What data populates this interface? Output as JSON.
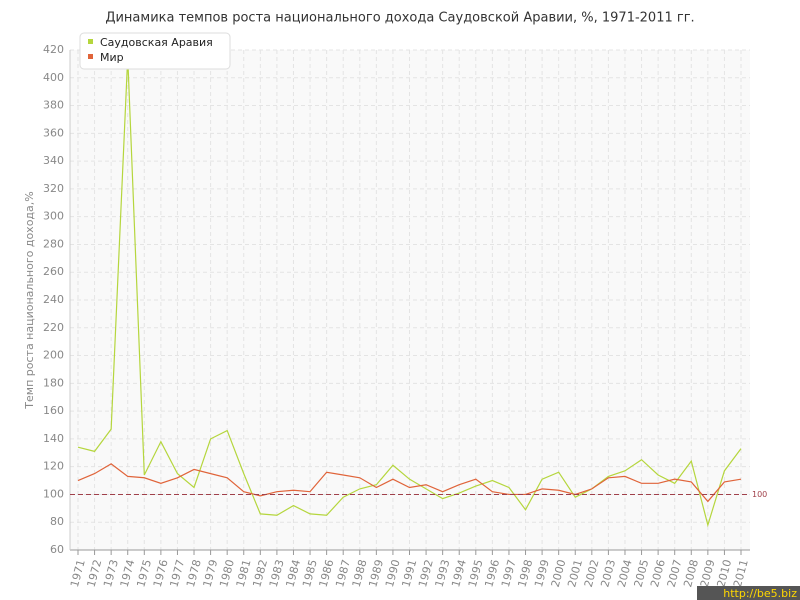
{
  "chart_data": {
    "type": "line",
    "title": "Динамика темпов роста национального дохода Саудовской Аравии, %, 1971-2011 гг.",
    "y_label": "Темп роста национального дохода,%",
    "categories": [
      "1971",
      "1972",
      "1973",
      "1974",
      "1975",
      "1976",
      "1977",
      "1978",
      "1979",
      "1980",
      "1981",
      "1982",
      "1983",
      "1984",
      "1985",
      "1986",
      "1987",
      "1988",
      "1989",
      "1990",
      "1991",
      "1992",
      "1993",
      "1994",
      "1995",
      "1996",
      "1997",
      "1998",
      "1999",
      "2000",
      "2001",
      "2002",
      "2003",
      "2004",
      "2005",
      "2006",
      "2007",
      "2008",
      "2009",
      "2010",
      "2011"
    ],
    "series": [
      {
        "name": "Саудовская Аравия",
        "color": "#b5d63d",
        "values": [
          134,
          131,
          147,
          415,
          114,
          138,
          115,
          105,
          140,
          146,
          115,
          86,
          85,
          92,
          86,
          85,
          98,
          104,
          107,
          121,
          111,
          104,
          97,
          101,
          106,
          110,
          105,
          89,
          111,
          116,
          98,
          104,
          113,
          117,
          125,
          114,
          108,
          124,
          78,
          117,
          133
        ]
      },
      {
        "name": "Мир",
        "color": "#e0643a",
        "values": [
          110,
          115,
          122,
          113,
          112,
          108,
          112,
          118,
          115,
          112,
          102,
          99,
          102,
          103,
          102,
          116,
          114,
          112,
          105,
          111,
          105,
          107,
          102,
          107,
          111,
          102,
          100,
          100,
          104,
          103,
          100,
          104,
          112,
          113,
          108,
          108,
          111,
          109,
          95,
          109,
          111
        ]
      }
    ],
    "ylim": [
      60,
      420
    ],
    "yticks": [
      60,
      80,
      100,
      120,
      140,
      160,
      180,
      200,
      220,
      240,
      260,
      280,
      300,
      320,
      340,
      360,
      380,
      400,
      420
    ],
    "grid": true,
    "legend": "top-left",
    "reference_line": 100,
    "reference_color": "#a0404a",
    "watermark": "http://be5.biz"
  }
}
